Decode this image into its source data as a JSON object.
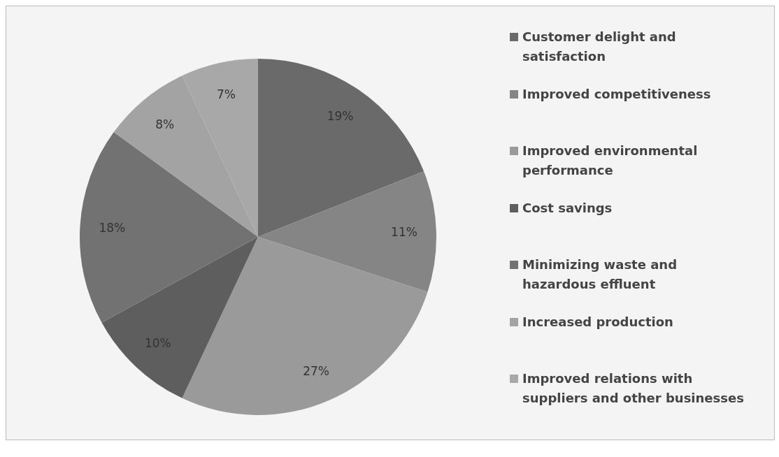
{
  "chart_data": {
    "type": "pie",
    "categories": [
      "Customer delight and satisfaction",
      "Improved competitiveness",
      "Improved environmental performance",
      "Cost savings",
      "Minimizing waste and hazardous effluent",
      "Increased production",
      "Improved relations with suppliers and other businesses"
    ],
    "values": [
      19,
      11,
      27,
      10,
      18,
      8,
      7
    ],
    "value_labels": [
      "19%",
      "11%",
      "27%",
      "10%",
      "18%",
      "8%",
      "7%"
    ],
    "colors": [
      "#6a6a6a",
      "#858585",
      "#9a9a9a",
      "#5e5e5e",
      "#727272",
      "#a3a3a3",
      "#a8a8a8"
    ],
    "legend": "right"
  }
}
